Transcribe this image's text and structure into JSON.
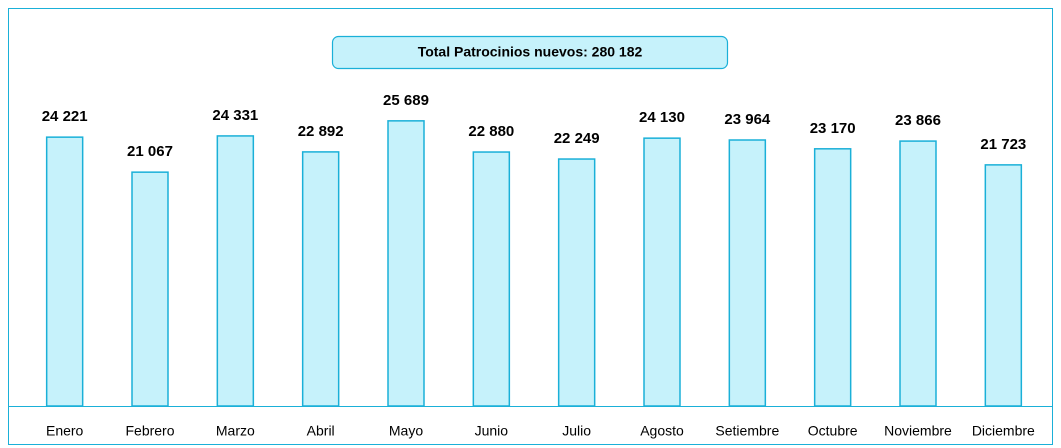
{
  "chart_data": {
    "type": "bar",
    "title": "Total Patrocinios nuevos: 280 182",
    "categories": [
      "Enero",
      "Febrero",
      "Marzo",
      "Abril",
      "Mayo",
      "Junio",
      "Julio",
      "Agosto",
      "Setiembre",
      "Octubre",
      "Noviembre",
      "Diciembre"
    ],
    "values": [
      24221,
      21067,
      24331,
      22892,
      25689,
      22880,
      22249,
      24130,
      23964,
      23170,
      23866,
      21723
    ],
    "value_labels": [
      "24 221",
      "21 067",
      "24 331",
      "22 892",
      "25 689",
      "22 880",
      "22 249",
      "24 130",
      "23 964",
      "23 170",
      "23 866",
      "21 723"
    ],
    "color": "#c6f2fb",
    "edge_color": "#1ab0d8",
    "ylim": [
      0,
      30000
    ]
  }
}
